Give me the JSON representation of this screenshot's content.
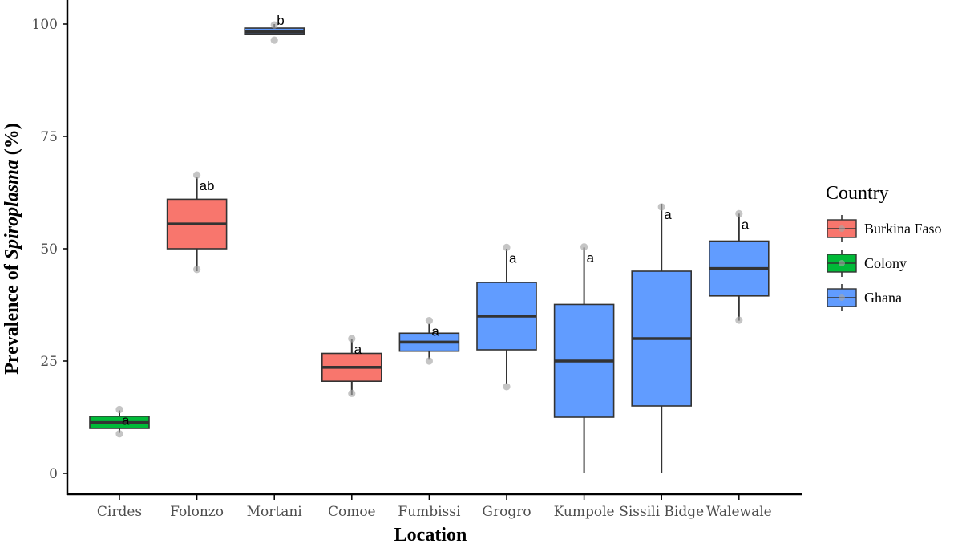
{
  "chart_data": {
    "type": "boxplot",
    "xlabel": "Location",
    "ylabel_prefix": "Prevalence of ",
    "ylabel_italic": "Spiroplasma",
    "ylabel_suffix": " (%)",
    "ylim": [
      0,
      100
    ],
    "yticks": [
      0,
      25,
      50,
      75,
      100
    ],
    "grid": false,
    "legend": {
      "title": "Country",
      "placement": "right",
      "entries": [
        {
          "name": "Burkina Faso",
          "color": "#F8766D"
        },
        {
          "name": "Colony",
          "color": "#00BA38"
        },
        {
          "name": "Ghana",
          "color": "#619CFF"
        }
      ]
    },
    "categories": [
      "Cirdes",
      "Folonzo",
      "Mortani",
      "Comoe",
      "Fumbissi",
      "Grogro",
      "Kumpole",
      "Sissili Bidge",
      "Walewale"
    ],
    "boxes": [
      {
        "category": "Cirdes",
        "country": "Colony",
        "whisker_low": 9,
        "q1": 10,
        "median": 11.3,
        "q3": 12.7,
        "whisker_high": 14,
        "points": [
          14.2,
          8.8
        ],
        "sig": "a"
      },
      {
        "category": "Folonzo",
        "country": "Burkina Faso",
        "whisker_low": 45,
        "q1": 50,
        "median": 55.5,
        "q3": 61,
        "whisker_high": 66,
        "points": [
          66.4,
          45.4
        ],
        "sig": "ab"
      },
      {
        "category": "Mortani",
        "country": "Ghana",
        "whisker_low": 97.5,
        "q1": 97.8,
        "median": 98.3,
        "q3": 99.1,
        "whisker_high": 100,
        "points": [
          99.8,
          96.4
        ],
        "sig": "b"
      },
      {
        "category": "Comoe",
        "country": "Burkina Faso",
        "whisker_low": 17.5,
        "q1": 20.5,
        "median": 23.6,
        "q3": 26.7,
        "whisker_high": 29.9,
        "points": [
          30.0,
          17.8
        ],
        "sig": "a"
      },
      {
        "category": "Fumbissi",
        "country": "Ghana",
        "whisker_low": 25.3,
        "q1": 27.2,
        "median": 29.2,
        "q3": 31.2,
        "whisker_high": 33.3,
        "points": [
          34.0,
          25.0
        ],
        "sig": "a"
      },
      {
        "category": "Grogro",
        "country": "Ghana",
        "whisker_low": 20,
        "q1": 27.5,
        "median": 35,
        "q3": 42.5,
        "whisker_high": 50,
        "points": [
          50.3,
          19.3
        ],
        "sig": "a"
      },
      {
        "category": "Kumpole",
        "country": "Ghana",
        "whisker_low": 0,
        "q1": 12.5,
        "median": 25,
        "q3": 37.6,
        "whisker_high": 50.3,
        "points": [
          50.4
        ],
        "sig": "a"
      },
      {
        "category": "Sissili Bidge",
        "country": "Ghana",
        "whisker_low": 0,
        "q1": 15,
        "median": 30,
        "q3": 45,
        "whisker_high": 60,
        "points": [
          59.3
        ],
        "sig": "a"
      },
      {
        "category": "Walewale",
        "country": "Ghana",
        "whisker_low": 34,
        "q1": 39.5,
        "median": 45.6,
        "q3": 51.7,
        "whisker_high": 57.8,
        "points": [
          57.8,
          34.1
        ],
        "sig": "a"
      }
    ]
  }
}
